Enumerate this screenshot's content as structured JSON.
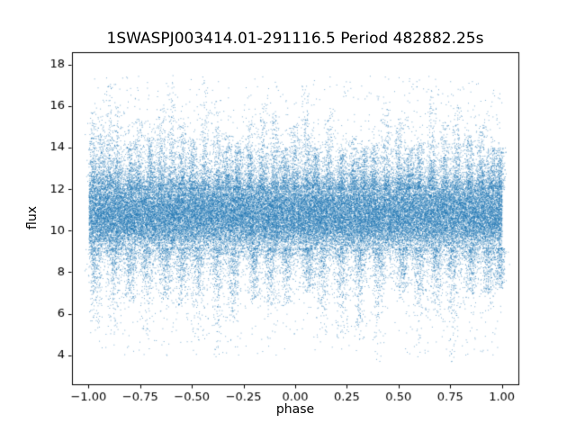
{
  "chart_data": {
    "type": "scatter",
    "title": "1SWASPJ003414.01-291116.5 Period 482882.25s",
    "xlabel": "phase",
    "ylabel": "flux",
    "xlim": [
      -1.08,
      1.08
    ],
    "ylim": [
      2.6,
      18.6
    ],
    "xticks": {
      "values": [
        -1.0,
        -0.75,
        -0.5,
        -0.25,
        0.0,
        0.25,
        0.5,
        0.75,
        1.0
      ],
      "labels": [
        "−1.00",
        "−0.75",
        "−0.50",
        "−0.25",
        "0.00",
        "0.25",
        "0.50",
        "0.75",
        "1.00"
      ]
    },
    "yticks": {
      "values": [
        4,
        6,
        8,
        10,
        12,
        14,
        16,
        18
      ],
      "labels": [
        "4",
        "6",
        "8",
        "10",
        "12",
        "14",
        "16",
        "18"
      ]
    },
    "marker_color": "#1f77b4",
    "marker_alpha": 0.55,
    "marker_size_px": 1,
    "n_points": 70000,
    "seed": 42,
    "phase_range": [
      -1.0,
      1.0
    ],
    "flux_range": [
      3.3,
      17.9
    ],
    "flux_core": {
      "mean": 10.8,
      "half_width": 1.2,
      "edge_sigma": 0.5
    },
    "flux_mid": {
      "mean": 10.8,
      "sigma": 1.7
    },
    "upper_streak_base": 12.0,
    "lower_streak_base": 9.2,
    "streak_jitter": 0.012,
    "streak_phases": [
      -0.98,
      -0.94,
      -0.9,
      -0.86,
      -0.8,
      -0.76,
      -0.7,
      -0.65,
      -0.6,
      -0.55,
      -0.5,
      -0.44,
      -0.38,
      -0.33,
      -0.28,
      -0.22,
      -0.16,
      -0.1,
      -0.05,
      0.0,
      0.05,
      0.1,
      0.16,
      0.22,
      0.28,
      0.33,
      0.38,
      0.44,
      0.5,
      0.55,
      0.6,
      0.66,
      0.72,
      0.78,
      0.84,
      0.9,
      0.95,
      0.99
    ],
    "lower_streak_phases": [
      -0.97,
      -0.88,
      -0.8,
      -0.72,
      -0.63,
      -0.55,
      -0.47,
      -0.38,
      -0.3,
      -0.2,
      -0.12,
      -0.04,
      0.06,
      0.13,
      0.22,
      0.31,
      0.4,
      0.52,
      0.6,
      0.68,
      0.76,
      0.85,
      0.93,
      0.99
    ],
    "mixture": {
      "core": 0.6,
      "mid": 0.17,
      "upper_streak": 0.13,
      "lower_streak": 0.08,
      "uniform": 0.02
    }
  }
}
